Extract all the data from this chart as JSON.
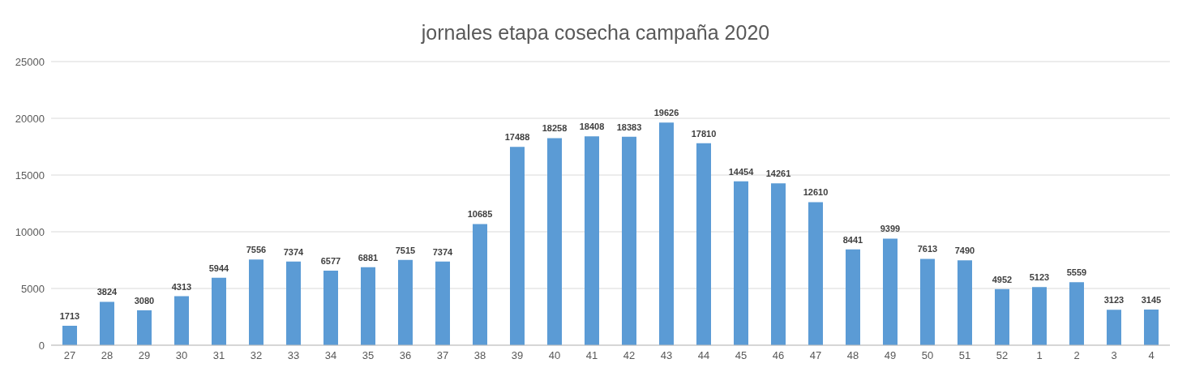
{
  "chart_data": {
    "type": "bar",
    "title": "jornales etapa cosecha campaña 2020",
    "categories": [
      "27",
      "28",
      "29",
      "30",
      "31",
      "32",
      "33",
      "34",
      "35",
      "36",
      "37",
      "38",
      "39",
      "40",
      "41",
      "42",
      "43",
      "44",
      "45",
      "46",
      "47",
      "48",
      "49",
      "50",
      "51",
      "52",
      "1",
      "2",
      "3",
      "4"
    ],
    "values": [
      1713,
      3824,
      3080,
      4313,
      5944,
      7556,
      7374,
      6577,
      6881,
      7515,
      7374,
      10685,
      17488,
      18258,
      18408,
      18383,
      19626,
      17810,
      14454,
      14261,
      12610,
      8441,
      9399,
      7613,
      7490,
      4952,
      5123,
      5559,
      3123,
      3145
    ],
    "color": "#5b9bd5",
    "ylim": [
      0,
      25000
    ],
    "yticks": [
      0,
      5000,
      10000,
      15000,
      20000,
      25000
    ],
    "grid": "y",
    "data_labels": true
  }
}
